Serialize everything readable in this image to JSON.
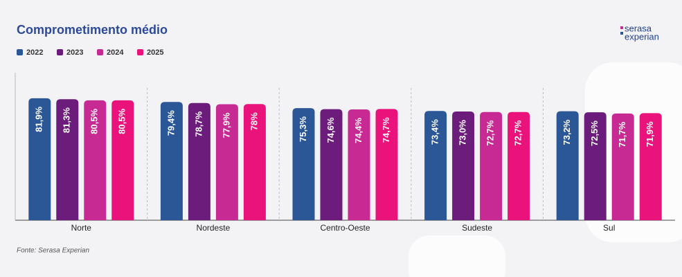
{
  "chart_data": {
    "type": "bar",
    "title": "Comprometimento médio",
    "source": "Fonte: Serasa Experian",
    "logo": [
      "serasa",
      "experian"
    ],
    "categories": [
      "Norte",
      "Nordeste",
      "Centro-Oeste",
      "Sudeste",
      "Sul"
    ],
    "series": [
      {
        "name": "2022",
        "color": "#2b5797",
        "values": [
          81.9,
          79.4,
          75.3,
          73.4,
          73.2
        ],
        "value_labels": [
          "81,9%",
          "79,4%",
          "75,3%",
          "73,4%",
          "73,2%"
        ]
      },
      {
        "name": "2023",
        "color": "#6c1d7c",
        "values": [
          81.3,
          78.7,
          74.6,
          73.0,
          72.5
        ],
        "value_labels": [
          "81,3%",
          "78,7%",
          "74,6%",
          "73,0%",
          "72,5%"
        ]
      },
      {
        "name": "2024",
        "color": "#c72a92",
        "values": [
          80.5,
          77.9,
          74.4,
          72.7,
          71.7
        ],
        "value_labels": [
          "80,5%",
          "77,9%",
          "74,4%",
          "72,7%",
          "71,7%"
        ]
      },
      {
        "name": "2025",
        "color": "#ea137b",
        "values": [
          80.5,
          78,
          74.7,
          72.7,
          71.9
        ],
        "value_labels": [
          "80,5%",
          "78%",
          "74,7%",
          "72,7%",
          "71,9%"
        ]
      }
    ]
  }
}
